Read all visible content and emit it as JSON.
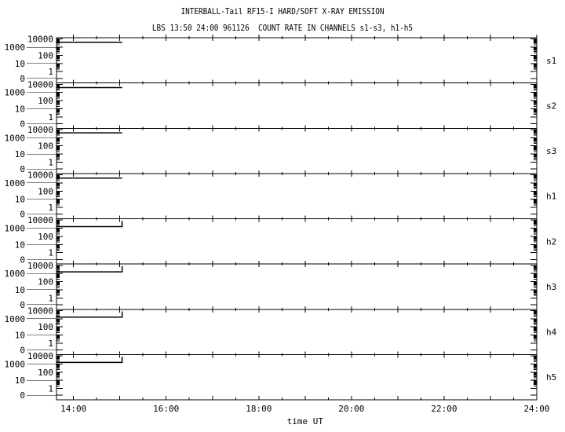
{
  "chart_data": {
    "type": "line",
    "title": "INTERBALL-Tail RF15-I HARD/SOFT X-RAY EMISSION",
    "subtitle": "LBS 13:50 24:00 961126  COUNT RATE IN CHANNELS s1-s3, h1-h5",
    "xlabel": "time UT",
    "x_ticks": [
      "14:00",
      "16:00",
      "18:00",
      "20:00",
      "22:00",
      "24:00"
    ],
    "xlim": [
      "13:38",
      "24:00"
    ],
    "y_scale": "log",
    "y_ticks": [
      "10000",
      "1000",
      "100",
      "10",
      "1",
      "0"
    ],
    "ylim": [
      0,
      10000
    ],
    "grid": false,
    "line_color": "#000000",
    "panels": [
      {
        "name": "s1",
        "x": [
          "13:38",
          "15:03"
        ],
        "y": [
          4000,
          4000
        ]
      },
      {
        "name": "s2",
        "x": [
          "13:38",
          "15:03"
        ],
        "y": [
          4000,
          4000
        ]
      },
      {
        "name": "s3",
        "x": [
          "13:38",
          "15:03"
        ],
        "y": [
          4000,
          4000
        ]
      },
      {
        "name": "h1",
        "x": [
          "13:38",
          "15:03"
        ],
        "y": [
          4000,
          4000
        ]
      },
      {
        "name": "h2",
        "x": [
          "13:38",
          "15:03",
          "15:03"
        ],
        "y": [
          1600,
          1600,
          8000
        ]
      },
      {
        "name": "h3",
        "x": [
          "13:38",
          "15:03",
          "15:03"
        ],
        "y": [
          1600,
          1600,
          8000
        ]
      },
      {
        "name": "h4",
        "x": [
          "13:38",
          "15:03",
          "15:03"
        ],
        "y": [
          1600,
          1600,
          8000
        ]
      },
      {
        "name": "h5",
        "x": [
          "13:38",
          "15:03",
          "15:03"
        ],
        "y": [
          1600,
          1600,
          8000
        ]
      }
    ]
  }
}
